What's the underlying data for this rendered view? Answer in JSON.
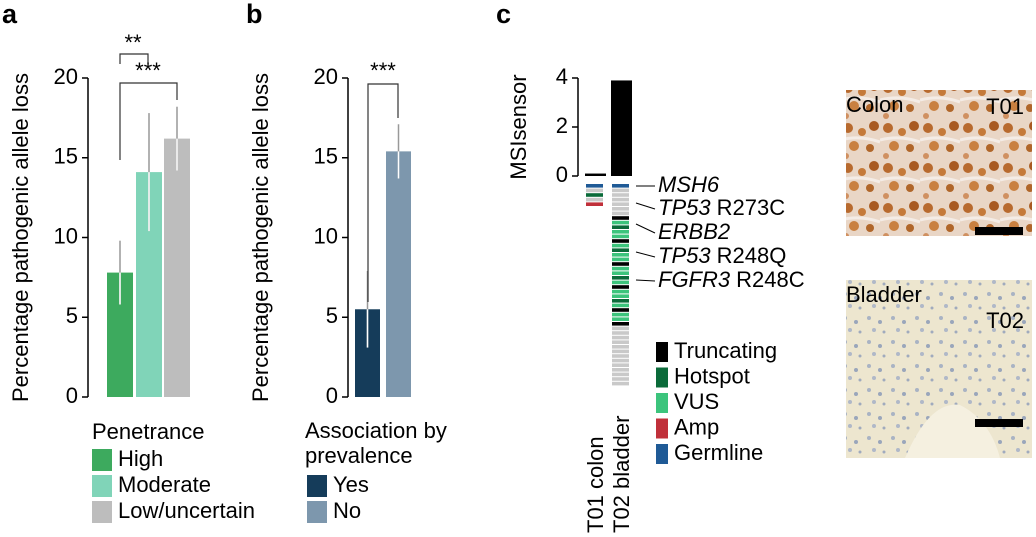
{
  "chart_data": [
    {
      "panel": "a",
      "type": "bar",
      "ylabel": "Percentage pathogenic allele loss",
      "categories": [
        "High",
        "Moderate",
        "Low/uncertain"
      ],
      "values": [
        7.8,
        14.1,
        16.2
      ],
      "errors": [
        2.0,
        3.7,
        2.0
      ],
      "colors": [
        "#3daa5e",
        "#80d4b8",
        "#bdbdbd"
      ],
      "ylim": [
        0,
        20
      ],
      "yticks": [
        0,
        5,
        10,
        15,
        20
      ],
      "legend_title": "Penetrance",
      "annotations": [
        "**",
        "***"
      ]
    },
    {
      "panel": "b",
      "type": "bar",
      "ylabel": "Percentage pathogenic allele loss",
      "categories": [
        "Yes",
        "No"
      ],
      "values": [
        5.5,
        15.4
      ],
      "errors": [
        2.4,
        1.7
      ],
      "colors": [
        "#153c5a",
        "#7d97ad"
      ],
      "ylim": [
        0,
        20
      ],
      "yticks": [
        0,
        5,
        10,
        15,
        20
      ],
      "legend_title": "Association by prevalence",
      "annotations": [
        "***"
      ]
    },
    {
      "panel": "c",
      "type": "bar",
      "ylabel": "MSIsensor",
      "categories": [
        "T01 colon",
        "T02 bladder"
      ],
      "values": [
        0.1,
        3.9
      ],
      "colors": [
        "#000000",
        "#000000"
      ],
      "ylim": [
        0,
        4
      ],
      "yticks": [
        0,
        2,
        4
      ],
      "oncoprint": {
        "unaltered_color": "#c9c9c9",
        "columns": [
          [
            "Germline",
            null,
            "Hotspot",
            null,
            "Amp"
          ],
          [
            "Germline",
            null,
            null,
            null,
            null,
            null,
            null,
            "Truncating",
            "VUS",
            "Hotspot",
            "VUS",
            "VUS",
            "Truncating",
            "VUS",
            "Hotspot",
            "VUS",
            "VUS",
            "Truncating",
            "VUS",
            "VUS",
            "Hotspot",
            "VUS",
            "Truncating",
            "VUS",
            "VUS",
            "Hotspot",
            "VUS",
            "Truncating",
            "VUS",
            "VUS",
            "Truncating",
            null,
            null,
            null,
            null,
            null,
            null,
            null,
            null,
            null,
            null,
            null,
            null,
            null
          ]
        ],
        "gene_labels": [
          {
            "gene": "MSH6",
            "variant": null
          },
          {
            "gene": "TP53",
            "variant": "R273C"
          },
          {
            "gene": "ERBB2",
            "variant": null
          },
          {
            "gene": "TP53",
            "variant": "R248Q"
          },
          {
            "gene": "FGFR3",
            "variant": "R248C"
          }
        ],
        "legend": [
          {
            "name": "Truncating",
            "color": "#000000"
          },
          {
            "name": "Hotspot",
            "color": "#0b6b3a"
          },
          {
            "name": "VUS",
            "color": "#3cc47c"
          },
          {
            "name": "Amp",
            "color": "#c0303a"
          },
          {
            "name": "Germline",
            "color": "#1f5a96"
          }
        ]
      },
      "images": [
        {
          "title": "Colon",
          "sample": "T01"
        },
        {
          "title": "Bladder",
          "sample": "T02"
        }
      ]
    }
  ]
}
